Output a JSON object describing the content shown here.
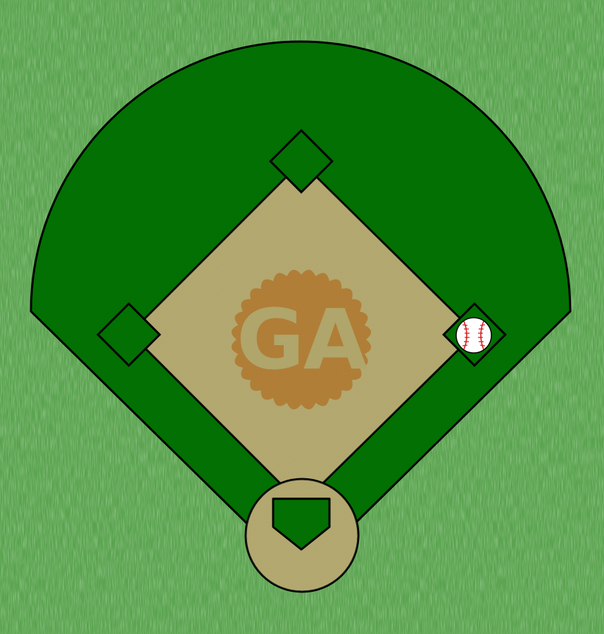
{
  "game": {
    "logo_text": "GA",
    "ball_location": "first-base",
    "bases": [
      "second-base",
      "third-base",
      "first-base",
      "home-plate"
    ]
  },
  "colors": {
    "grass_light": "#5aa34f",
    "grass_dark": "#3f8a36",
    "outfield": "#027002",
    "infield_dirt": "#b0a56a",
    "logo_badge": "#b07930",
    "outline": "#000000",
    "ball": "#ffffff",
    "ball_stitch": "#d42020"
  }
}
